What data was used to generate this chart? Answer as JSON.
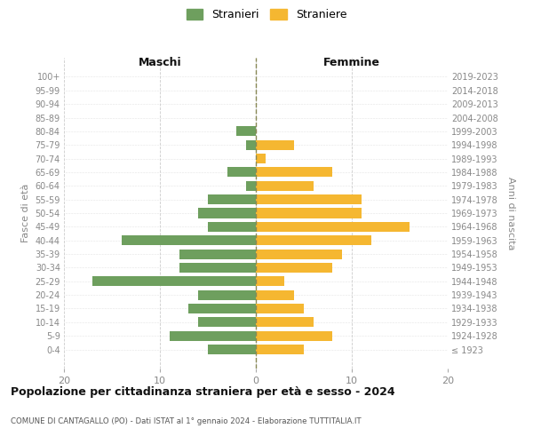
{
  "age_groups": [
    "100+",
    "95-99",
    "90-94",
    "85-89",
    "80-84",
    "75-79",
    "70-74",
    "65-69",
    "60-64",
    "55-59",
    "50-54",
    "45-49",
    "40-44",
    "35-39",
    "30-34",
    "25-29",
    "20-24",
    "15-19",
    "10-14",
    "5-9",
    "0-4"
  ],
  "birth_years": [
    "≤ 1923",
    "1924-1928",
    "1929-1933",
    "1934-1938",
    "1939-1943",
    "1944-1948",
    "1949-1953",
    "1954-1958",
    "1959-1963",
    "1964-1968",
    "1969-1973",
    "1974-1978",
    "1979-1983",
    "1984-1988",
    "1989-1993",
    "1994-1998",
    "1999-2003",
    "2004-2008",
    "2009-2013",
    "2014-2018",
    "2019-2023"
  ],
  "maschi": [
    0,
    0,
    0,
    0,
    2,
    1,
    0,
    3,
    1,
    5,
    6,
    5,
    14,
    8,
    8,
    17,
    6,
    7,
    6,
    9,
    5
  ],
  "femmine": [
    0,
    0,
    0,
    0,
    0,
    4,
    1,
    8,
    6,
    11,
    11,
    16,
    12,
    9,
    8,
    3,
    4,
    5,
    6,
    8,
    5
  ],
  "male_color": "#6e9f5e",
  "female_color": "#f5b731",
  "title": "Popolazione per cittadinanza straniera per età e sesso - 2024",
  "subtitle": "COMUNE DI CANTAGALLO (PO) - Dati ISTAT al 1° gennaio 2024 - Elaborazione TUTTITALIA.IT",
  "xlabel_left": "Maschi",
  "xlabel_right": "Femmine",
  "ylabel_left": "Fasce di età",
  "ylabel_right": "Anni di nascita",
  "legend_male": "Stranieri",
  "legend_female": "Straniere",
  "xlim": 20,
  "bar_height": 0.72,
  "bg_color": "#ffffff",
  "grid_color": "#cccccc",
  "axis_color": "#aaaaaa",
  "label_color": "#888888",
  "title_color": "#111111",
  "subtitle_color": "#555555"
}
